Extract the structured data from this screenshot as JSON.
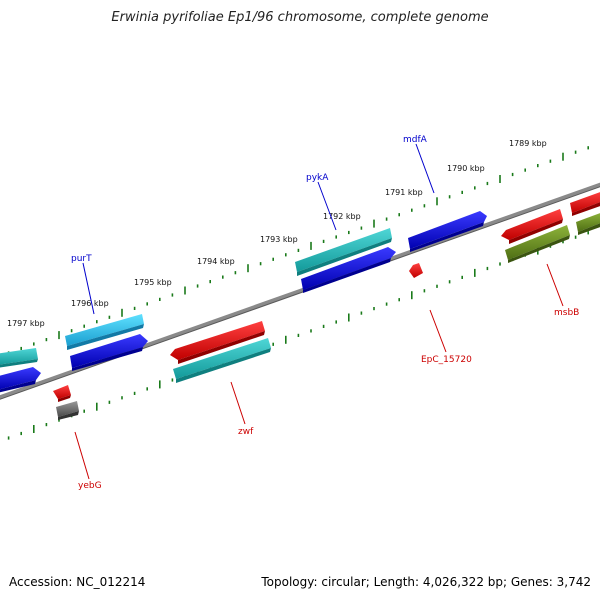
{
  "title": "Erwinia pyrifoliae Ep1/96 chromosome, complete genome",
  "footer": {
    "accession": "Accession: NC_012214",
    "topology": "Topology: circular; Length: 4,026,322 bp; Genes: 3,742"
  },
  "colors": {
    "backbone": "#777777",
    "tick": "#1a7a1a",
    "forward_label": "#0000cc",
    "reverse_label": "#cc0000"
  },
  "ruler": {
    "direction": "kbp decreases left to right",
    "labels": [
      "1797 kbp",
      "1796 kbp",
      "1795 kbp",
      "1794 kbp",
      "1793 kbp",
      "1792 kbp",
      "1791 kbp",
      "1790 kbp",
      "1789 kbp"
    ]
  },
  "genes": [
    {
      "name": "purT",
      "strand": "forward",
      "color": "#2ab7e8"
    },
    {
      "name": "pykA",
      "strand": "forward",
      "color": "#22b0b0"
    },
    {
      "name": "mdfA",
      "strand": "forward",
      "color": "#0a0ae0"
    },
    {
      "name": "yebG",
      "strand": "reverse",
      "color": "#6f6f6f"
    },
    {
      "name": "zwf",
      "strand": "reverse",
      "color": "#22c0c0"
    },
    {
      "name": "EpC_15720",
      "strand": "reverse",
      "color": "#e81010"
    },
    {
      "name": "msbB",
      "strand": "reverse",
      "color": "#6b8e23"
    }
  ]
}
